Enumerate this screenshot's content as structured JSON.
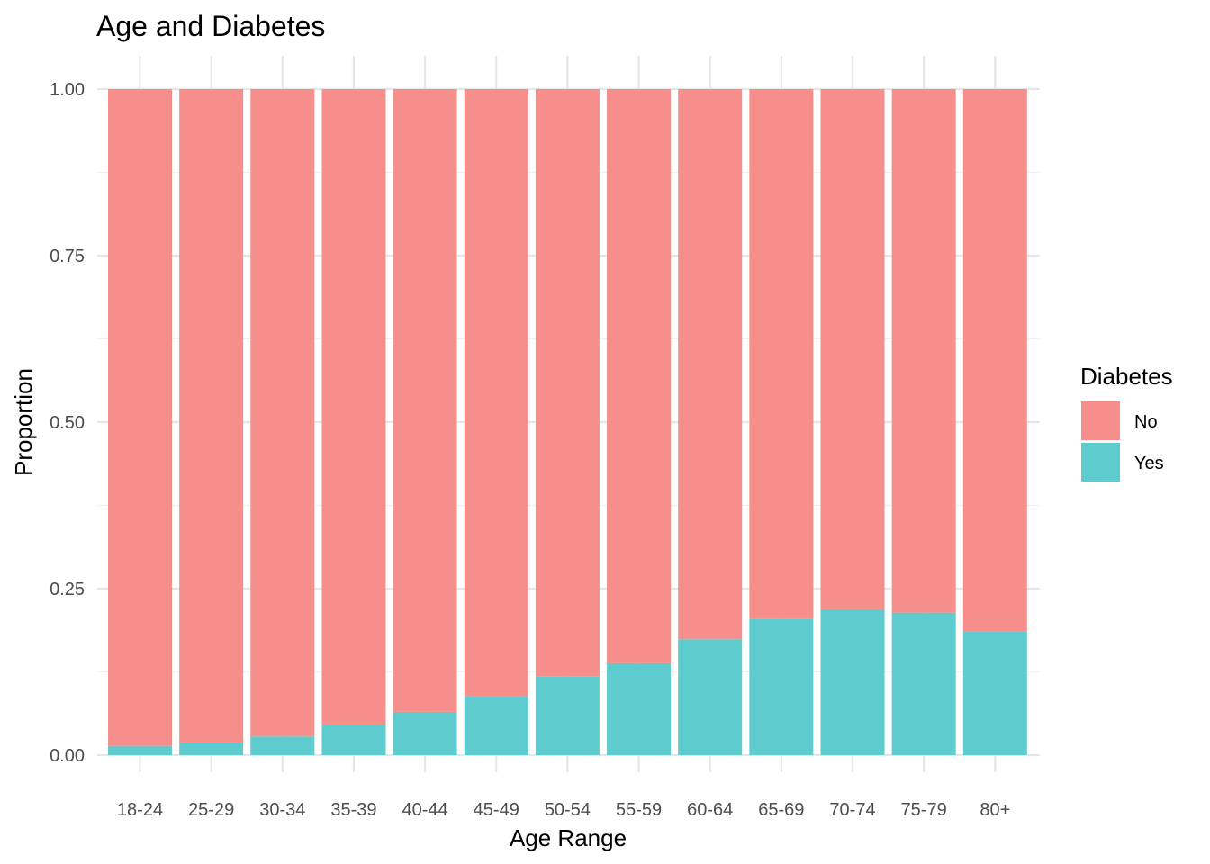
{
  "chart_data": {
    "type": "bar",
    "stacked": true,
    "title": "Age and Diabetes",
    "xlabel": "Age Range",
    "ylabel": "Proportion",
    "categories": [
      "18-24",
      "25-29",
      "30-34",
      "35-39",
      "40-44",
      "45-49",
      "50-54",
      "55-59",
      "60-64",
      "65-69",
      "70-74",
      "75-79",
      "80+"
    ],
    "series": [
      {
        "name": "Yes",
        "color": "#5ecbcf",
        "values": [
          0.014,
          0.019,
          0.028,
          0.046,
          0.065,
          0.088,
          0.118,
          0.138,
          0.174,
          0.205,
          0.219,
          0.214,
          0.186
        ]
      },
      {
        "name": "No",
        "color": "#f68e8b",
        "values": [
          0.986,
          0.981,
          0.972,
          0.954,
          0.935,
          0.912,
          0.882,
          0.862,
          0.826,
          0.795,
          0.781,
          0.786,
          0.814
        ]
      }
    ],
    "ylim": [
      0,
      1
    ],
    "yticks": [
      "0.00",
      "0.25",
      "0.50",
      "0.75",
      "1.00"
    ],
    "grid": true,
    "legend": {
      "title": "Diabetes",
      "position": "right",
      "entries": [
        {
          "label": "No",
          "color": "#f68e8b"
        },
        {
          "label": "Yes",
          "color": "#5ecbcf"
        }
      ]
    }
  }
}
